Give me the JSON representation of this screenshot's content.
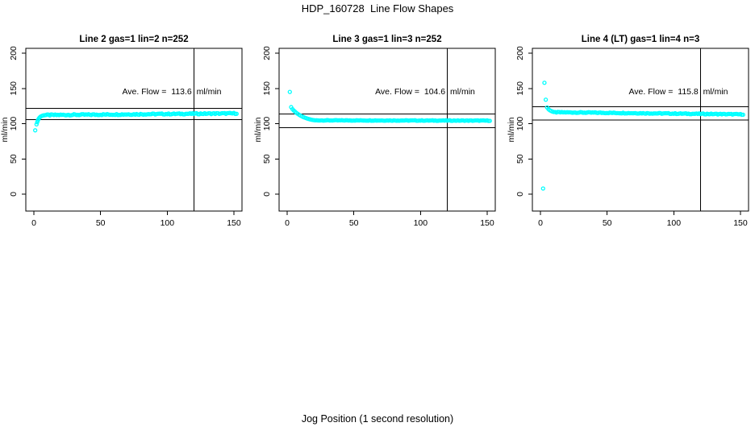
{
  "figure": {
    "title": "HDP_160728  Line Flow Shapes",
    "xlabel": "Jog Position (1 second resolution)",
    "ylabel": "ml/min",
    "point_color": "#00FFFF",
    "axis_color": "#000000",
    "background": "#FFFFFF"
  },
  "chart_data": [
    {
      "type": "scatter",
      "title": "Line 2 gas=1 lin=2 n=252",
      "annotation": {
        "label": "Ave. Flow =",
        "value": "113.6",
        "unit": "ml/min"
      },
      "ave_flow": 113.6,
      "xlim": [
        0,
        150
      ],
      "ylim": [
        0,
        200
      ],
      "x_ticks": [
        0,
        50,
        100,
        150
      ],
      "y_ticks": [
        0,
        50,
        100,
        150,
        200
      ],
      "grid": false,
      "ref_lines": {
        "upper": 122,
        "lower": 106,
        "vertical_x": 120
      },
      "transient_points": [
        [
          1,
          90.5
        ],
        [
          2,
          99
        ],
        [
          2.5,
          102
        ],
        [
          3,
          104.5
        ],
        [
          3.5,
          106.5
        ],
        [
          4,
          108
        ],
        [
          4.5,
          109
        ],
        [
          5,
          110
        ],
        [
          6,
          111
        ],
        [
          7,
          111.7
        ]
      ],
      "plateau": {
        "x_start": 8,
        "x_end": 152,
        "step": 1,
        "y_start": 112.2,
        "y_end": 114.6,
        "jitter": 1.6
      }
    },
    {
      "type": "scatter",
      "title": "Line 3 gas=1 lin=3 n=252",
      "annotation": {
        "label": "Ave. Flow =",
        "value": "104.6",
        "unit": "ml/min"
      },
      "ave_flow": 104.6,
      "xlim": [
        0,
        150
      ],
      "ylim": [
        0,
        200
      ],
      "x_ticks": [
        0,
        50,
        100,
        150
      ],
      "y_ticks": [
        0,
        50,
        100,
        150,
        200
      ],
      "grid": false,
      "ref_lines": {
        "upper": 113.5,
        "lower": 94.5,
        "vertical_x": 120
      },
      "transient_points": [
        [
          2,
          145
        ],
        [
          3,
          123.5
        ],
        [
          4,
          120.5
        ],
        [
          5,
          118.5
        ],
        [
          6,
          116.8
        ],
        [
          7,
          115.2
        ],
        [
          8,
          113.8
        ],
        [
          9,
          112.5
        ],
        [
          10,
          111.4
        ],
        [
          11,
          110.4
        ],
        [
          12,
          109.5
        ],
        [
          13,
          108.7
        ],
        [
          14,
          108
        ],
        [
          15,
          107.3
        ],
        [
          16,
          106.7
        ],
        [
          17,
          106.2
        ],
        [
          18,
          105.7
        ],
        [
          19,
          105.3
        ],
        [
          20,
          105
        ]
      ],
      "plateau": {
        "x_start": 21,
        "x_end": 152,
        "step": 1,
        "y_start": 104.7,
        "y_end": 104.3,
        "jitter": 0.8
      }
    },
    {
      "type": "scatter",
      "title": "Line 4 (LT) gas=1 lin=4 n=3",
      "annotation": {
        "label": "Ave. Flow =",
        "value": "115.8",
        "unit": "ml/min"
      },
      "ave_flow": 115.8,
      "xlim": [
        0,
        150
      ],
      "ylim": [
        0,
        200
      ],
      "x_ticks": [
        0,
        50,
        100,
        150
      ],
      "y_ticks": [
        0,
        50,
        100,
        150,
        200
      ],
      "grid": false,
      "ref_lines": {
        "upper": 124,
        "lower": 105,
        "vertical_x": 120
      },
      "transient_points": [
        [
          2,
          8
        ],
        [
          3,
          158
        ],
        [
          4,
          134
        ],
        [
          5,
          123
        ],
        [
          6,
          120.5
        ],
        [
          7,
          119
        ],
        [
          8,
          118
        ],
        [
          9,
          117.2
        ],
        [
          10,
          116.6
        ]
      ],
      "plateau": {
        "x_start": 11,
        "x_end": 152,
        "step": 1,
        "y_start": 116.2,
        "y_end": 113.2,
        "jitter": 1.2
      }
    }
  ]
}
